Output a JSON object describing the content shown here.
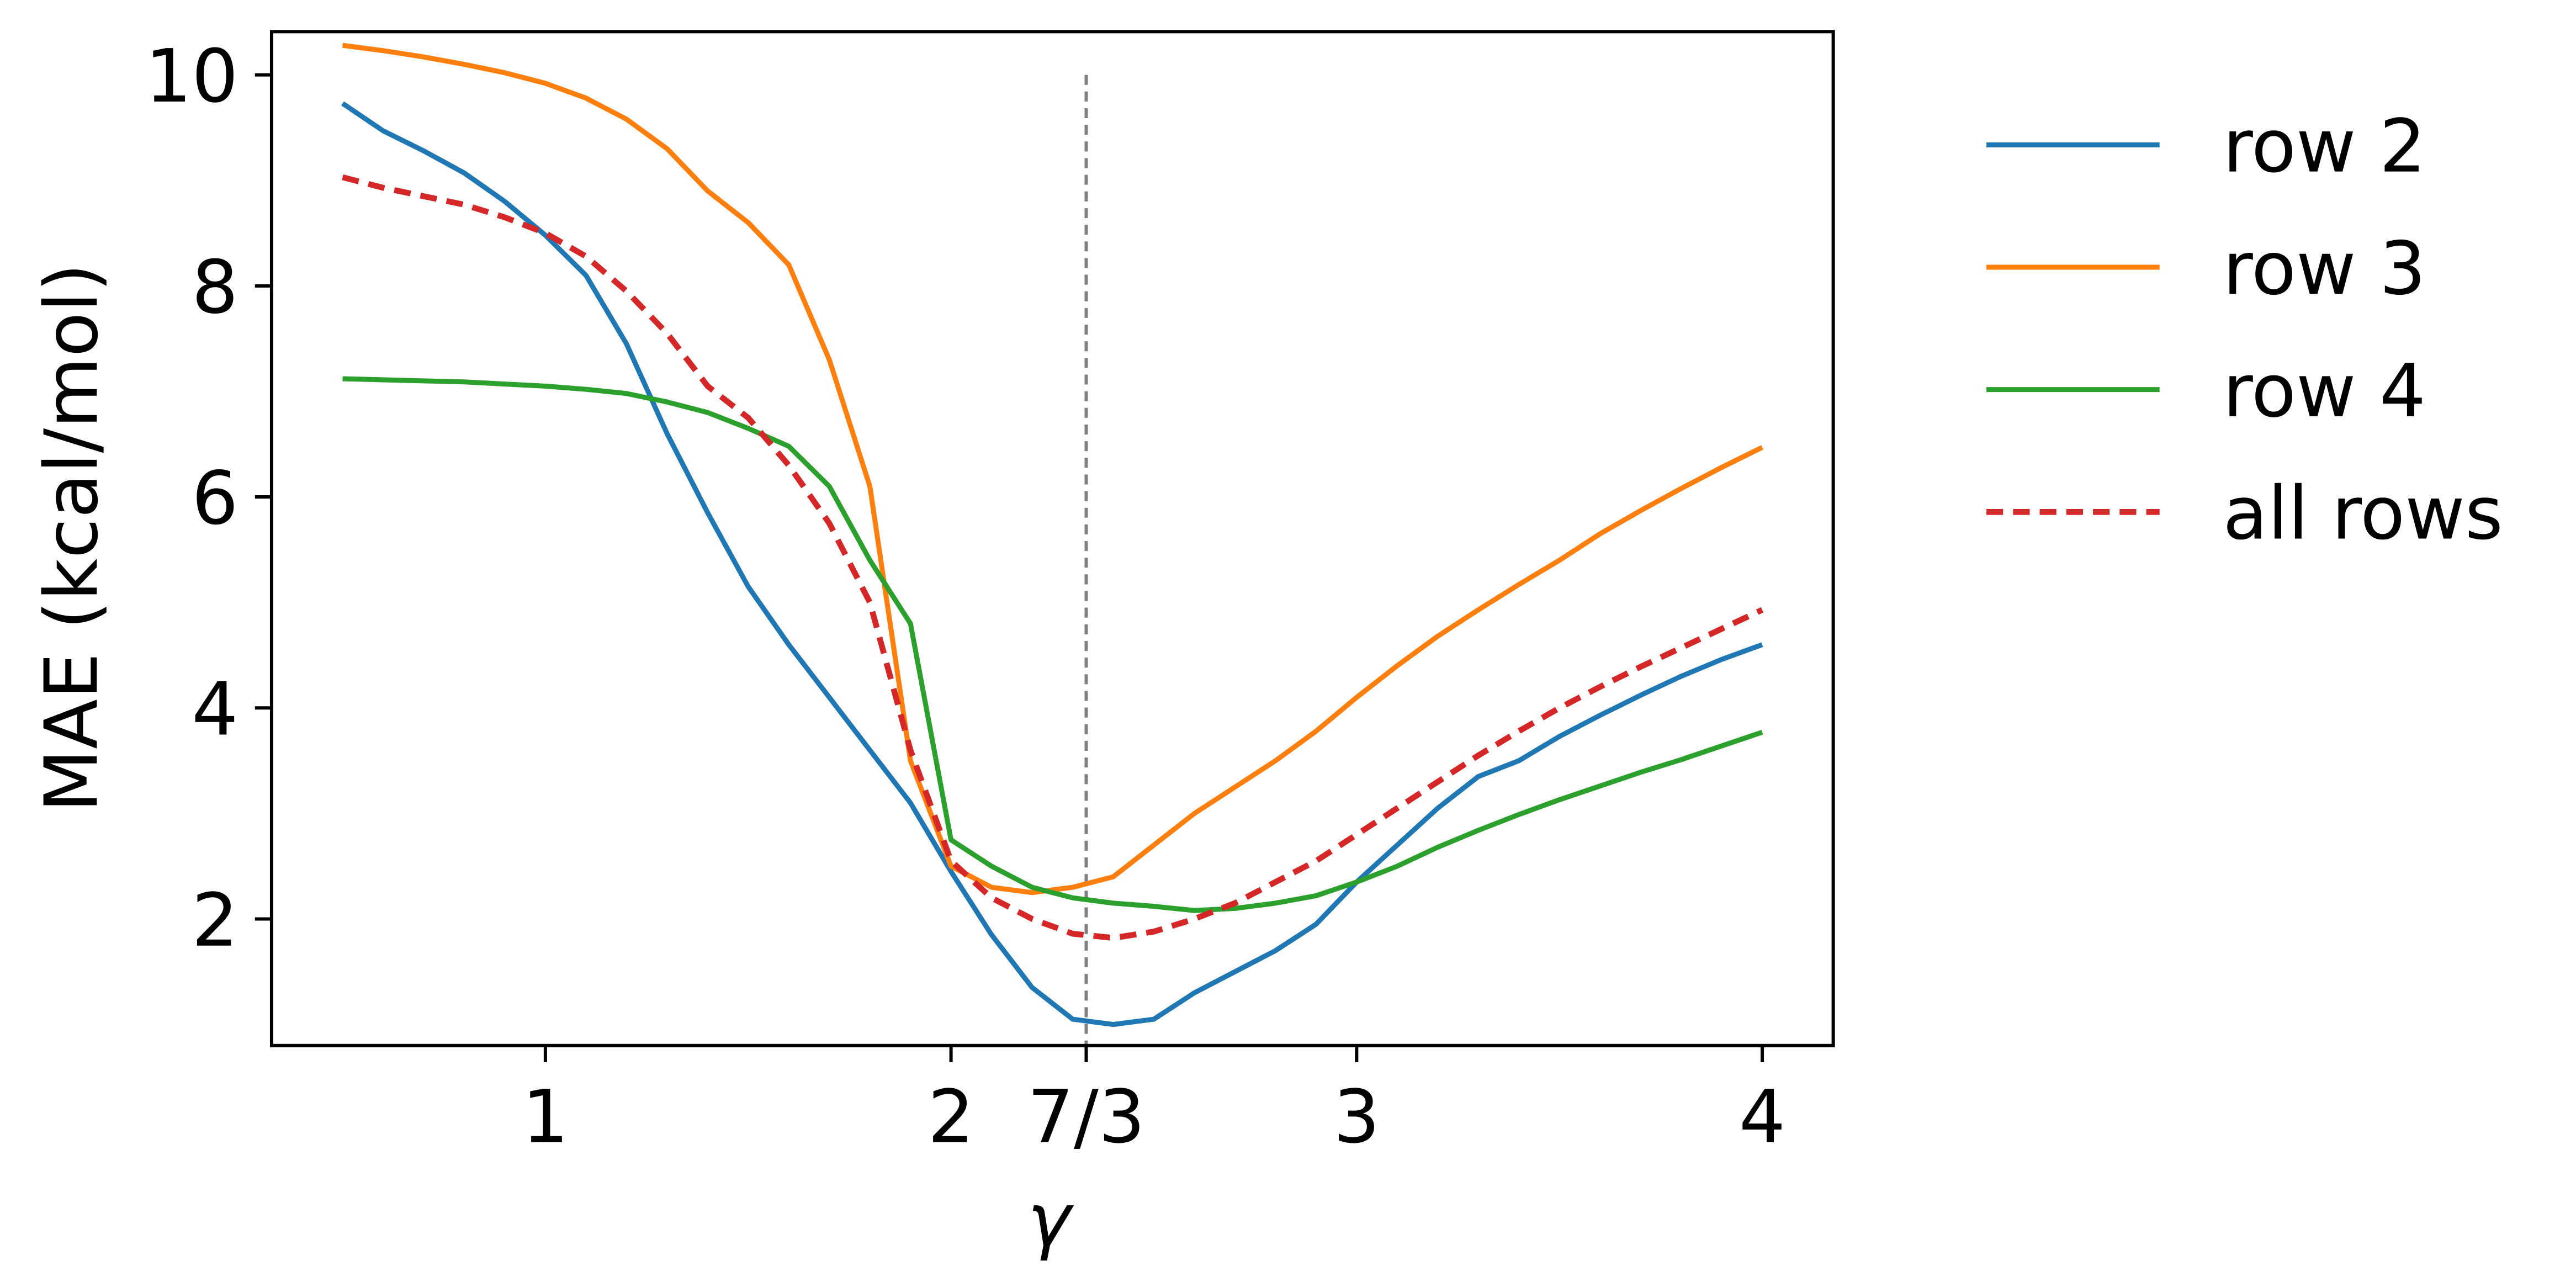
{
  "chart_data": {
    "type": "line",
    "xlabel": "γ",
    "ylabel": "MAE (kcal/mol)",
    "x": [
      0.5,
      0.6,
      0.7,
      0.8,
      0.9,
      1.0,
      1.1,
      1.2,
      1.3,
      1.4,
      1.5,
      1.6,
      1.7,
      1.8,
      1.9,
      2.0,
      2.1,
      2.2,
      2.3,
      2.4,
      2.5,
      2.6,
      2.7,
      2.8,
      2.9,
      3.0,
      3.1,
      3.2,
      3.3,
      3.4,
      3.5,
      3.6,
      3.7,
      3.8,
      3.9,
      4.0
    ],
    "series": [
      {
        "name": "row 2",
        "color": "#1f77b4",
        "dash": false,
        "values": [
          9.73,
          9.47,
          9.28,
          9.07,
          8.8,
          8.48,
          8.1,
          7.45,
          6.6,
          5.85,
          5.15,
          4.6,
          4.1,
          3.6,
          3.1,
          2.45,
          1.85,
          1.35,
          1.05,
          1.0,
          1.05,
          1.3,
          1.5,
          1.7,
          1.95,
          2.35,
          2.7,
          3.05,
          3.35,
          3.5,
          3.73,
          3.93,
          4.12,
          4.3,
          4.46,
          4.6
        ]
      },
      {
        "name": "row 3",
        "color": "#ff7f0e",
        "dash": false,
        "values": [
          10.28,
          10.23,
          10.17,
          10.1,
          10.02,
          9.92,
          9.78,
          9.58,
          9.3,
          8.9,
          8.6,
          8.2,
          7.3,
          6.1,
          3.5,
          2.5,
          2.3,
          2.25,
          2.3,
          2.4,
          2.7,
          3.0,
          3.25,
          3.5,
          3.78,
          4.1,
          4.4,
          4.68,
          4.93,
          5.17,
          5.4,
          5.65,
          5.87,
          6.08,
          6.28,
          6.47
        ]
      },
      {
        "name": "row 4",
        "color": "#2ca02c",
        "dash": false,
        "values": [
          7.12,
          7.11,
          7.1,
          7.09,
          7.07,
          7.05,
          7.02,
          6.98,
          6.9,
          6.8,
          6.65,
          6.48,
          6.1,
          5.4,
          4.8,
          2.75,
          2.5,
          2.3,
          2.2,
          2.15,
          2.12,
          2.08,
          2.1,
          2.15,
          2.22,
          2.35,
          2.5,
          2.68,
          2.84,
          2.99,
          3.13,
          3.26,
          3.39,
          3.51,
          3.64,
          3.77
        ]
      },
      {
        "name": "all rows",
        "color": "#d62728",
        "dash": true,
        "values": [
          9.03,
          8.93,
          8.85,
          8.77,
          8.65,
          8.5,
          8.28,
          7.95,
          7.55,
          7.05,
          6.75,
          6.3,
          5.75,
          5.0,
          3.6,
          2.55,
          2.2,
          2.0,
          1.86,
          1.82,
          1.88,
          2.0,
          2.15,
          2.35,
          2.55,
          2.8,
          3.05,
          3.3,
          3.55,
          3.78,
          4.0,
          4.2,
          4.39,
          4.57,
          4.75,
          4.93
        ]
      }
    ],
    "xlim": [
      0.325,
      4.175
    ],
    "ylim": [
      0.8,
      10.41
    ],
    "xticks": [
      1,
      2,
      {
        "value": 2.3333,
        "label": "7/3"
      },
      3,
      4
    ],
    "yticks": [
      2,
      4,
      6,
      8,
      10
    ],
    "vline": {
      "x": 2.3333,
      "ymax": 10,
      "color": "#808080"
    },
    "legend": "outside right",
    "grid": false
  }
}
